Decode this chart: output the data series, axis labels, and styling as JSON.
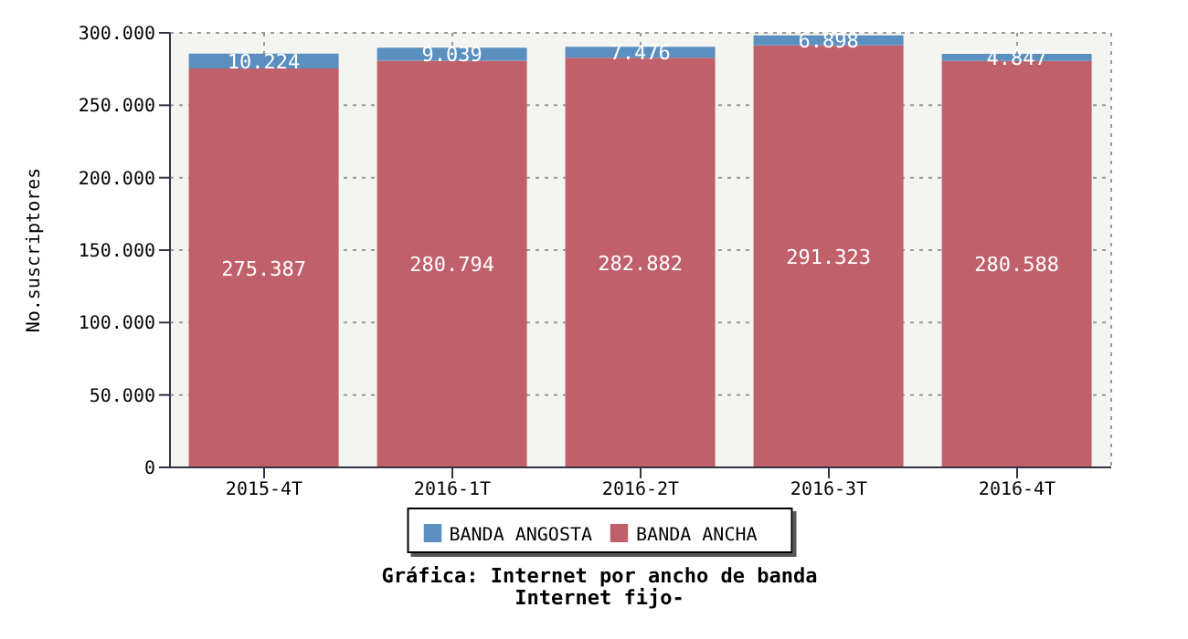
{
  "chart_data": {
    "type": "bar",
    "title": "Gráfica: Internet por ancho de banda",
    "subtitle": "Internet fijo-",
    "ylabel": "No.suscriptores",
    "categories": [
      "2015-4T",
      "2016-1T",
      "2016-2T",
      "2016-3T",
      "2016-4T"
    ],
    "stacked": true,
    "series": [
      {
        "name": "BANDA ANCHA",
        "color": "#c0606a",
        "values": [
          275387,
          280794,
          282882,
          291323,
          280588
        ],
        "value_labels": [
          "275.387",
          "280.794",
          "282.882",
          "291.323",
          "280.588"
        ]
      },
      {
        "name": "BANDA ANGOSTA",
        "color": "#5b8fc0",
        "values": [
          10224,
          9039,
          7476,
          6898,
          4847
        ],
        "value_labels": [
          "10.224",
          "9.039",
          "7.476",
          "6.898",
          "4.847"
        ]
      }
    ],
    "ylim": [
      0,
      300000
    ],
    "yticks": [
      {
        "value": 0,
        "label": "0"
      },
      {
        "value": 50000,
        "label": "50.000"
      },
      {
        "value": 100000,
        "label": "100.000"
      },
      {
        "value": 150000,
        "label": "150.000"
      },
      {
        "value": 200000,
        "label": "200.000"
      },
      {
        "value": 250000,
        "label": "250.000"
      },
      {
        "value": 300000,
        "label": "300.000"
      }
    ],
    "grid": true,
    "legend": "bottom"
  }
}
